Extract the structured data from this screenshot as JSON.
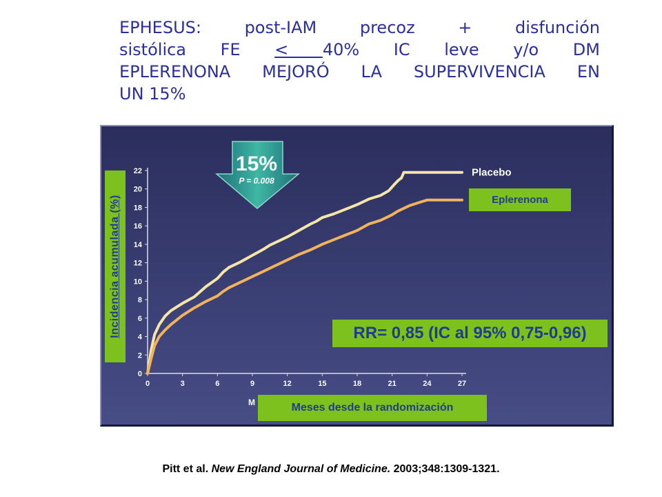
{
  "title": {
    "part1_acronym": "EPHESUS",
    "part1_rest": ": post-IAM precoz + disfunción",
    "part2_lead": "sistólica FE ",
    "part2_symbol": "<   ",
    "part2_rest": "40% IC leve y/o DM",
    "line3": "EPLERENONA MEJORÓ LA SUPERVIVENCIA EN",
    "line4": "UN 15%"
  },
  "citation": {
    "authors": "Pitt et al. ",
    "journal": "New England Journal of Medicine.",
    "details": " 2003;348:1309-1321."
  },
  "colors": {
    "title_blue": "#2b2f9e",
    "label_green": "#7cc11e",
    "label_text": "#1f3d8a",
    "placebo_line": "#f5e6a8",
    "eplerenona_line": "#f2b35c",
    "arrow": "#2e9c8e"
  },
  "badge": {
    "percent": "15%",
    "pvalue": "P = 0.008",
    "icon": "down-arrow-icon"
  },
  "rr_text": "RR= 0,85 (IC al 95%  0,75-0,96)",
  "chart_data": {
    "type": "line",
    "title": "",
    "xlabel": "Meses desde la randomización",
    "xlabel_stub": "M",
    "ylabel": "Incidencia acumulada (%)",
    "xlim": [
      0,
      27
    ],
    "ylim": [
      0,
      22
    ],
    "xticks": [
      0,
      3,
      6,
      9,
      12,
      15,
      18,
      21,
      24,
      27
    ],
    "yticks": [
      0,
      2,
      4,
      6,
      8,
      10,
      12,
      14,
      16,
      18,
      20,
      22
    ],
    "grid": false,
    "series": [
      {
        "name": "Placebo",
        "label_style": "direct",
        "x": [
          0,
          0.3,
          0.6,
          1,
          1.5,
          2,
          3,
          4,
          5,
          6,
          6.5,
          7,
          8,
          9,
          10,
          10.5,
          11,
          12,
          13,
          14,
          14.5,
          15,
          16,
          17,
          18,
          19,
          20,
          20.7,
          21.2,
          21.5,
          21.8,
          22,
          23,
          24,
          25,
          26,
          27
        ],
        "y": [
          0,
          2.5,
          4.2,
          5.3,
          6.2,
          6.8,
          7.6,
          8.3,
          9.4,
          10.3,
          11,
          11.5,
          12.1,
          12.8,
          13.5,
          13.9,
          14.2,
          14.8,
          15.5,
          16.2,
          16.5,
          16.9,
          17.3,
          17.8,
          18.3,
          18.9,
          19.3,
          19.8,
          20.5,
          20.9,
          21.2,
          21.8,
          21.8,
          21.8,
          21.8,
          21.8,
          21.8
        ]
      },
      {
        "name": "Eplerenona",
        "label_style": "boxed",
        "x": [
          0,
          0.3,
          0.6,
          1,
          1.5,
          2,
          3,
          4,
          5,
          6,
          6.5,
          7,
          8,
          9,
          10,
          11,
          12,
          13,
          14,
          15,
          16,
          17,
          18,
          19,
          20,
          20.5,
          21,
          21.5,
          22,
          22.5,
          23,
          23.5,
          24,
          25,
          26,
          27
        ],
        "y": [
          0,
          1.6,
          3.0,
          4.0,
          4.7,
          5.3,
          6.3,
          7.1,
          7.8,
          8.4,
          8.9,
          9.3,
          9.9,
          10.5,
          11.1,
          11.7,
          12.3,
          12.9,
          13.4,
          14.0,
          14.5,
          15.0,
          15.5,
          16.2,
          16.6,
          16.9,
          17.2,
          17.6,
          17.9,
          18.2,
          18.4,
          18.6,
          18.8,
          18.8,
          18.8,
          18.8
        ]
      }
    ]
  }
}
